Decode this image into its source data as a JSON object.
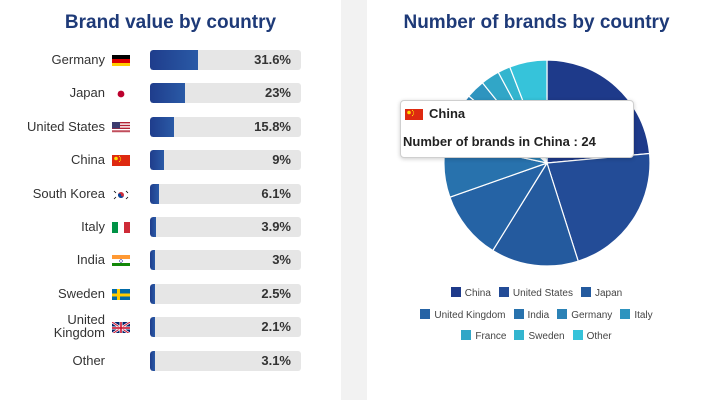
{
  "left_panel": {
    "title": "Brand value by country",
    "rows": [
      {
        "label": "Germany",
        "flag": "germany-flag",
        "value": 31.6,
        "value_label": "31.6%"
      },
      {
        "label": "Japan",
        "flag": "japan-flag",
        "value": 23,
        "value_label": "23%"
      },
      {
        "label": "United States",
        "flag": "usa-flag",
        "value": 15.8,
        "value_label": "15.8%"
      },
      {
        "label": "China",
        "flag": "china-flag",
        "value": 9,
        "value_label": "9%"
      },
      {
        "label": "South Korea",
        "flag": "south-korea-flag",
        "value": 6.1,
        "value_label": "6.1%"
      },
      {
        "label": "Italy",
        "flag": "italy-flag",
        "value": 3.9,
        "value_label": "3.9%"
      },
      {
        "label": "India",
        "flag": "india-flag",
        "value": 3,
        "value_label": "3%"
      },
      {
        "label": "Sweden",
        "flag": "sweden-flag",
        "value": 2.5,
        "value_label": "2.5%"
      },
      {
        "label": "United\nKingdom",
        "flag": "uk-flag",
        "value": 2.1,
        "value_label": "2.1%"
      },
      {
        "label": "Other",
        "flag": "",
        "value": 3.1,
        "value_label": "3.1%"
      }
    ]
  },
  "right_panel": {
    "title": "Number of brands by country",
    "tooltip": {
      "title": "China",
      "flag": "china-flag",
      "body": "Number of brands in China : 24"
    }
  },
  "chart_data": [
    {
      "type": "bar",
      "title": "Brand value by country",
      "categories": [
        "Germany",
        "Japan",
        "United States",
        "China",
        "South Korea",
        "Italy",
        "India",
        "Sweden",
        "United Kingdom",
        "Other"
      ],
      "values": [
        31.6,
        23,
        15.8,
        9,
        6.1,
        3.9,
        3,
        2.5,
        2.1,
        3.1
      ],
      "ylim": [
        0,
        100
      ],
      "orientation": "horizontal"
    },
    {
      "type": "pie",
      "title": "Number of brands by country",
      "categories": [
        "China",
        "United States",
        "Japan",
        "United Kingdom",
        "India",
        "Germany",
        "Italy",
        "France",
        "Sweden",
        "Other"
      ],
      "values": [
        24,
        22,
        14,
        11,
        9,
        8,
        3,
        3,
        2,
        6
      ],
      "colors": [
        "#1e3a8a",
        "#234c97",
        "#245a9e",
        "#2563a5",
        "#2872ad",
        "#2b82b6",
        "#2e94bf",
        "#31a6c7",
        "#33b5cf",
        "#36c3da"
      ],
      "legend_position": "bottom"
    }
  ]
}
